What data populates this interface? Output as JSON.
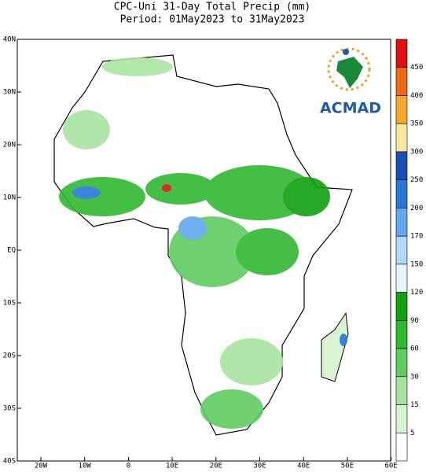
{
  "header": {
    "title": "CPC-Uni 31-Day Total Precip (mm)",
    "subtitle": "Period: 01May2023 to 31May2023"
  },
  "map": {
    "lat_labels": [
      "40N",
      "30N",
      "20N",
      "10N",
      "EQ",
      "10S",
      "20S",
      "30S",
      "40S"
    ],
    "lon_labels": [
      "20W",
      "10W",
      "0",
      "10E",
      "20E",
      "30E",
      "40E",
      "50E",
      "60E"
    ]
  },
  "colorbar": {
    "labels": [
      "450",
      "400",
      "350",
      "300",
      "250",
      "200",
      "170",
      "150",
      "120",
      "90",
      "60",
      "30",
      "15",
      "5"
    ],
    "colors": [
      "#e01010",
      "#f06818",
      "#f8a830",
      "#f8e8a0",
      "#1850b8",
      "#2878d8",
      "#60a8f0",
      "#b0d8f8",
      "#e8f4fc",
      "#10a010",
      "#30b830",
      "#60cc60",
      "#a8e4a0",
      "#d8f4d0",
      "#ffffff"
    ]
  },
  "logo": {
    "text": "ACMAD"
  }
}
